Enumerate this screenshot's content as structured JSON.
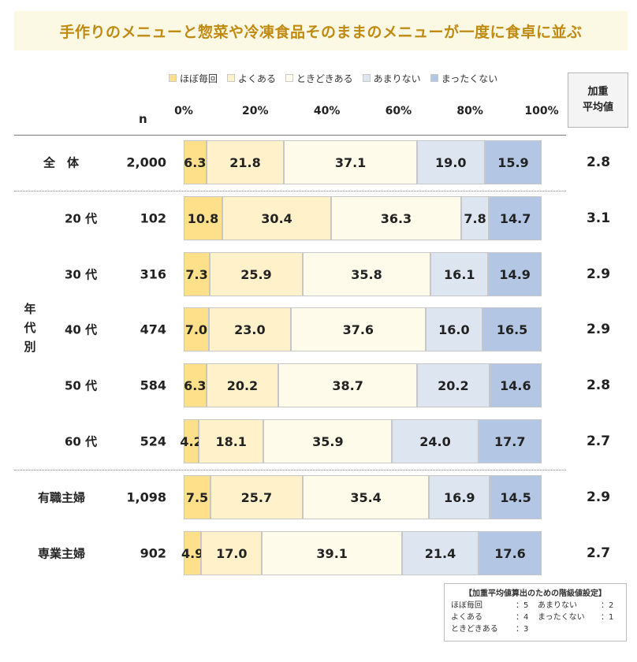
{
  "title": "手作りのメニューと惣菜や冷凍食品そのままのメニューが一度に食卓に並ぶ",
  "colors": [
    "#ffe08a",
    "#fff1c9",
    "#fffbea",
    "#dde5f1",
    "#b3c6e3"
  ],
  "weighted_header": [
    "加重",
    "平均値"
  ],
  "n_label": "n",
  "group_age_label": [
    "年",
    "代",
    "別"
  ],
  "chart_data": {
    "type": "bar",
    "orientation": "horizontal",
    "stacked": true,
    "percent": true,
    "legend_position": "top",
    "xlim": [
      0,
      100
    ],
    "x_ticks": [
      "0%",
      "20%",
      "40%",
      "60%",
      "80%",
      "100%"
    ],
    "series_names": [
      "ほぼ毎回",
      "よくある",
      "ときどきある",
      "あまりない",
      "まったくない"
    ],
    "rows": [
      {
        "label": "全　体",
        "n": "2,000",
        "weighted_avg": "2.8",
        "values": [
          6.3,
          21.8,
          37.1,
          19.0,
          15.9
        ]
      },
      {
        "label": "20 代",
        "n": "102",
        "weighted_avg": "3.1",
        "values": [
          10.8,
          30.4,
          36.3,
          7.8,
          14.7
        ]
      },
      {
        "label": "30 代",
        "n": "316",
        "weighted_avg": "2.9",
        "values": [
          7.3,
          25.9,
          35.8,
          16.1,
          14.9
        ]
      },
      {
        "label": "40 代",
        "n": "474",
        "weighted_avg": "2.9",
        "values": [
          7.0,
          23.0,
          37.6,
          16.0,
          16.5
        ]
      },
      {
        "label": "50 代",
        "n": "584",
        "weighted_avg": "2.8",
        "values": [
          6.3,
          20.2,
          38.7,
          20.2,
          14.6
        ]
      },
      {
        "label": "60 代",
        "n": "524",
        "weighted_avg": "2.7",
        "values": [
          4.2,
          18.1,
          35.9,
          24.0,
          17.7
        ]
      },
      {
        "label": "有職主婦",
        "n": "1,098",
        "weighted_avg": "2.9",
        "values": [
          7.5,
          25.7,
          35.4,
          16.9,
          14.5
        ]
      },
      {
        "label": "専業主婦",
        "n": "902",
        "weighted_avg": "2.7",
        "values": [
          4.9,
          17.0,
          39.1,
          21.4,
          17.6
        ]
      }
    ]
  },
  "settings": {
    "title": "【加重平均値算出のための階級値設定】",
    "items": [
      {
        "label": "ほぼ毎回",
        "value": "5"
      },
      {
        "label": "あまりない",
        "value": "2"
      },
      {
        "label": "よくある",
        "value": "4"
      },
      {
        "label": "まったくない",
        "value": "1"
      },
      {
        "label": "ときどきある",
        "value": "3"
      }
    ]
  }
}
